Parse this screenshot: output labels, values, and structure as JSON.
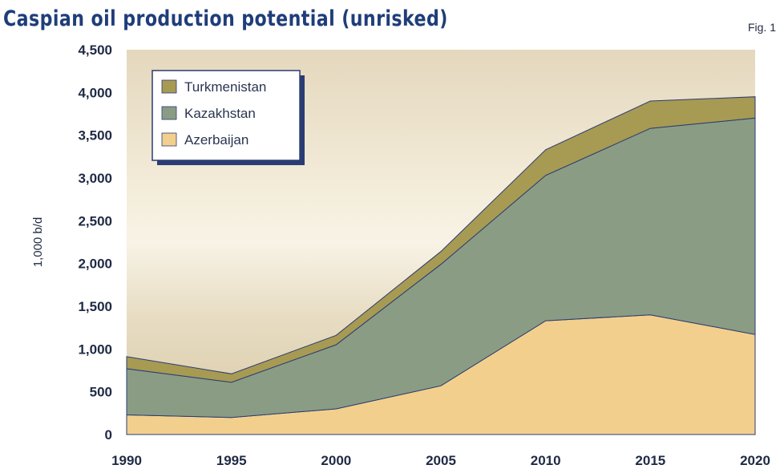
{
  "title": "Caspian oil production potential (unrisked)",
  "figure_label": "Fig. 1",
  "colors": {
    "azerbaijan": "#f2cf8c",
    "kazakhstan": "#8a9d84",
    "turkmenistan": "#a79a52",
    "outline": "#2b3c74",
    "legend_border": "#2b3c74"
  },
  "chart_data": {
    "type": "area",
    "stacked": true,
    "title": "Caspian oil production potential (unrisked)",
    "ylabel": "1,000 b/d",
    "xlabel": "",
    "x": [
      1990,
      1995,
      2000,
      2005,
      2010,
      2015,
      2020
    ],
    "ylim": [
      0,
      4500
    ],
    "yticks": [
      0,
      500,
      1000,
      1500,
      2000,
      2500,
      3000,
      3500,
      4000,
      4500
    ],
    "ytick_labels": [
      "0",
      "500",
      "1,000",
      "1,500",
      "2,000",
      "2,500",
      "3,000",
      "3,500",
      "4,000",
      "4,500"
    ],
    "xtick_labels": [
      "1990",
      "1995",
      "2000",
      "2005",
      "2010",
      "2015",
      "2020"
    ],
    "legend_position": "top-left",
    "grid": false,
    "series": [
      {
        "name": "Azerbaijan",
        "values": [
          230,
          200,
          300,
          570,
          1330,
          1400,
          1170
        ]
      },
      {
        "name": "Kazakhstan",
        "values": [
          540,
          410,
          750,
          1420,
          1700,
          2180,
          2530
        ]
      },
      {
        "name": "Turkmenistan",
        "values": [
          140,
          100,
          110,
          150,
          300,
          320,
          250
        ]
      }
    ],
    "legend_order": [
      "Turkmenistan",
      "Kazakhstan",
      "Azerbaijan"
    ]
  }
}
